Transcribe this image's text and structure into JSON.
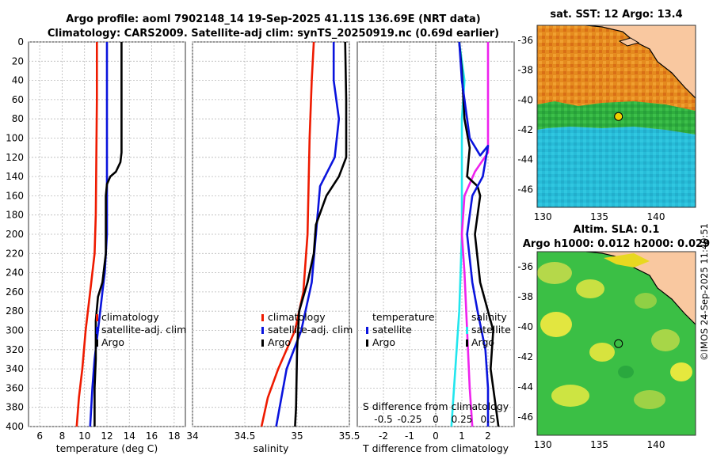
{
  "title": {
    "line1": "Argo profile: aoml 7902148_14 19-Sep-2025 41.11S 136.69E (NRT data)",
    "line2": "Climatology: CARS2009. Satellite-adj clim: synTS_20250919.nc (0.69d earlier)"
  },
  "watermark": "©IMOS 24-Sep-2025 11:40:51",
  "colors": {
    "climatology": "#ee1a00",
    "satellite": "#0a14dd",
    "argo": "#000000",
    "sat_t": "#22e6ee",
    "sat_s": "#ee22ee",
    "land": "#f9c8a0"
  },
  "chart_data": [
    {
      "type": "line",
      "name": "temperature",
      "xlabel": "temperature (deg C)",
      "ylabel": "",
      "xlim": [
        5,
        19
      ],
      "xticks": [
        6,
        8,
        10,
        12,
        14,
        16,
        18
      ],
      "ylim": [
        0,
        400
      ],
      "yticks": [
        0,
        20,
        40,
        60,
        80,
        100,
        120,
        140,
        160,
        180,
        200,
        220,
        240,
        260,
        280,
        300,
        320,
        340,
        360,
        380,
        400
      ],
      "y_reversed": true,
      "grid": true,
      "legend": [
        "climatology",
        "satellite-adj. clim",
        "Argo"
      ],
      "legend_position": "center-right",
      "series": [
        {
          "name": "climatology",
          "color": "#ee1a00",
          "points": [
            [
              11.1,
              0
            ],
            [
              11.1,
              60
            ],
            [
              11.05,
              120
            ],
            [
              11.0,
              180
            ],
            [
              10.9,
              220
            ],
            [
              10.5,
              260
            ],
            [
              10.1,
              300
            ],
            [
              9.8,
              340
            ],
            [
              9.5,
              370
            ],
            [
              9.3,
              400
            ]
          ]
        },
        {
          "name": "satellite-adj. clim",
          "color": "#0a14dd",
          "points": [
            [
              12.0,
              0
            ],
            [
              12.0,
              100
            ],
            [
              12.0,
              200
            ],
            [
              11.8,
              240
            ],
            [
              11.6,
              260
            ],
            [
              11.2,
              300
            ],
            [
              10.9,
              330
            ],
            [
              10.7,
              360
            ],
            [
              10.5,
              400
            ]
          ]
        },
        {
          "name": "Argo",
          "color": "#000000",
          "points": [
            [
              13.3,
              0
            ],
            [
              13.3,
              60
            ],
            [
              13.3,
              115
            ],
            [
              13.2,
              125
            ],
            [
              12.8,
              135
            ],
            [
              12.3,
              140
            ],
            [
              12.0,
              148
            ],
            [
              11.9,
              160
            ],
            [
              11.9,
              220
            ],
            [
              11.6,
              250
            ],
            [
              11.2,
              265
            ],
            [
              11.0,
              290
            ],
            [
              11.0,
              330
            ],
            [
              10.9,
              360
            ],
            [
              10.9,
              400
            ]
          ]
        }
      ]
    },
    {
      "type": "line",
      "name": "salinity",
      "xlabel": "salinity",
      "xlim": [
        34.0,
        35.5
      ],
      "xticks": [
        34,
        34.5,
        35,
        35.5
      ],
      "xticklabels": [
        "34",
        "34.5",
        "35",
        "35.5"
      ],
      "ylim": [
        0,
        400
      ],
      "y_reversed": true,
      "grid": true,
      "legend": [
        "climatology",
        "satellite-adj. clim",
        "Argo"
      ],
      "legend_position": "center-right",
      "series": [
        {
          "name": "climatology",
          "color": "#ee1a00",
          "points": [
            [
              35.16,
              0
            ],
            [
              35.14,
              40
            ],
            [
              35.12,
              100
            ],
            [
              35.11,
              150
            ],
            [
              35.1,
              200
            ],
            [
              35.06,
              260
            ],
            [
              34.98,
              300
            ],
            [
              34.82,
              340
            ],
            [
              34.72,
              370
            ],
            [
              34.66,
              400
            ]
          ]
        },
        {
          "name": "satellite-adj. clim",
          "color": "#0a14dd",
          "points": [
            [
              35.35,
              0
            ],
            [
              35.35,
              40
            ],
            [
              35.4,
              80
            ],
            [
              35.36,
              120
            ],
            [
              35.22,
              150
            ],
            [
              35.18,
              200
            ],
            [
              35.14,
              250
            ],
            [
              35.04,
              300
            ],
            [
              34.9,
              340
            ],
            [
              34.8,
              400
            ]
          ]
        },
        {
          "name": "Argo",
          "color": "#000000",
          "points": [
            [
              35.46,
              0
            ],
            [
              35.47,
              60
            ],
            [
              35.47,
              120
            ],
            [
              35.4,
              140
            ],
            [
              35.28,
              160
            ],
            [
              35.18,
              190
            ],
            [
              35.16,
              220
            ],
            [
              35.1,
              250
            ],
            [
              35.02,
              280
            ],
            [
              35.0,
              320
            ],
            [
              34.99,
              380
            ],
            [
              34.98,
              400
            ]
          ]
        }
      ]
    },
    {
      "type": "line",
      "name": "difference",
      "xlabel": "T difference from climatology",
      "xlabel_top": "S difference from climatology",
      "xlim": [
        -3,
        3
      ],
      "xticks": [
        -2,
        -1,
        0,
        1,
        2
      ],
      "xticks_top": [
        -0.5,
        -0.25,
        0,
        0.25,
        0.5
      ],
      "xticklabels_top": [
        "-0.5",
        "-0.25",
        "0",
        "0.25",
        "0.5"
      ],
      "ylim": [
        0,
        400
      ],
      "y_reversed": true,
      "grid": true,
      "legend_left": [
        "temperature",
        "satellite",
        "Argo"
      ],
      "legend_right": [
        "salinity",
        "satellite",
        "Argo"
      ],
      "series": [
        {
          "name": "T satellite",
          "color": "#22e6ee",
          "points": [
            [
              0.9,
              0
            ],
            [
              1.1,
              40
            ],
            [
              1.0,
              80
            ],
            [
              1.0,
              120
            ],
            [
              1.0,
              200
            ],
            [
              0.9,
              280
            ],
            [
              0.8,
              320
            ],
            [
              0.7,
              360
            ],
            [
              0.6,
              400
            ]
          ]
        },
        {
          "name": "S satellite",
          "color": "#ee22ee",
          "points": [
            [
              2.0,
              0
            ],
            [
              2.0,
              60
            ],
            [
              2.0,
              115
            ],
            [
              1.5,
              135
            ],
            [
              1.1,
              160
            ],
            [
              1.0,
              200
            ],
            [
              1.1,
              240
            ],
            [
              1.2,
              300
            ],
            [
              1.3,
              360
            ],
            [
              1.4,
              400
            ]
          ]
        },
        {
          "name": "T Argo",
          "color": "#000000",
          "points": [
            [
              0.9,
              0
            ],
            [
              1.0,
              30
            ],
            [
              1.1,
              80
            ],
            [
              1.3,
              110
            ],
            [
              1.2,
              140
            ],
            [
              1.6,
              150
            ],
            [
              1.7,
              160
            ],
            [
              1.5,
              200
            ],
            [
              1.7,
              250
            ],
            [
              2.2,
              300
            ],
            [
              2.1,
              340
            ],
            [
              2.3,
              380
            ],
            [
              2.4,
              400
            ]
          ]
        },
        {
          "name": "S Argo",
          "color": "#0a14dd",
          "points": [
            [
              0.9,
              0
            ],
            [
              1.0,
              40
            ],
            [
              1.3,
              100
            ],
            [
              1.7,
              118
            ],
            [
              2.0,
              108
            ],
            [
              1.8,
              140
            ],
            [
              1.4,
              160
            ],
            [
              1.2,
              200
            ],
            [
              1.4,
              250
            ],
            [
              1.6,
              280
            ],
            [
              1.9,
              320
            ],
            [
              2.0,
              360
            ],
            [
              2.0,
              400
            ]
          ]
        }
      ]
    },
    {
      "type": "heatmap",
      "name": "sat_sst_map",
      "title": "sat. SST: 12 Argo: 13.4",
      "xticks": [
        130,
        135,
        140
      ],
      "yticks": [
        -36,
        -38,
        -40,
        -42,
        -44,
        -46
      ],
      "xlim": [
        129.5,
        143.5
      ],
      "ylim": [
        -47.2,
        -35.0
      ],
      "argo_location": [
        136.69,
        -41.11
      ]
    },
    {
      "type": "heatmap",
      "name": "altim_sla_map",
      "title_line1": "Altim. SLA: 0.1",
      "title_line2": "Argo h1000: 0.012 h2000: 0.029",
      "xticks": [
        130,
        135,
        140
      ],
      "yticks": [
        -36,
        -38,
        -40,
        -42,
        -44,
        -46
      ],
      "xlim": [
        129.5,
        143.5
      ],
      "ylim": [
        -47.2,
        -35.0
      ],
      "argo_location": [
        136.69,
        -41.11
      ]
    }
  ]
}
